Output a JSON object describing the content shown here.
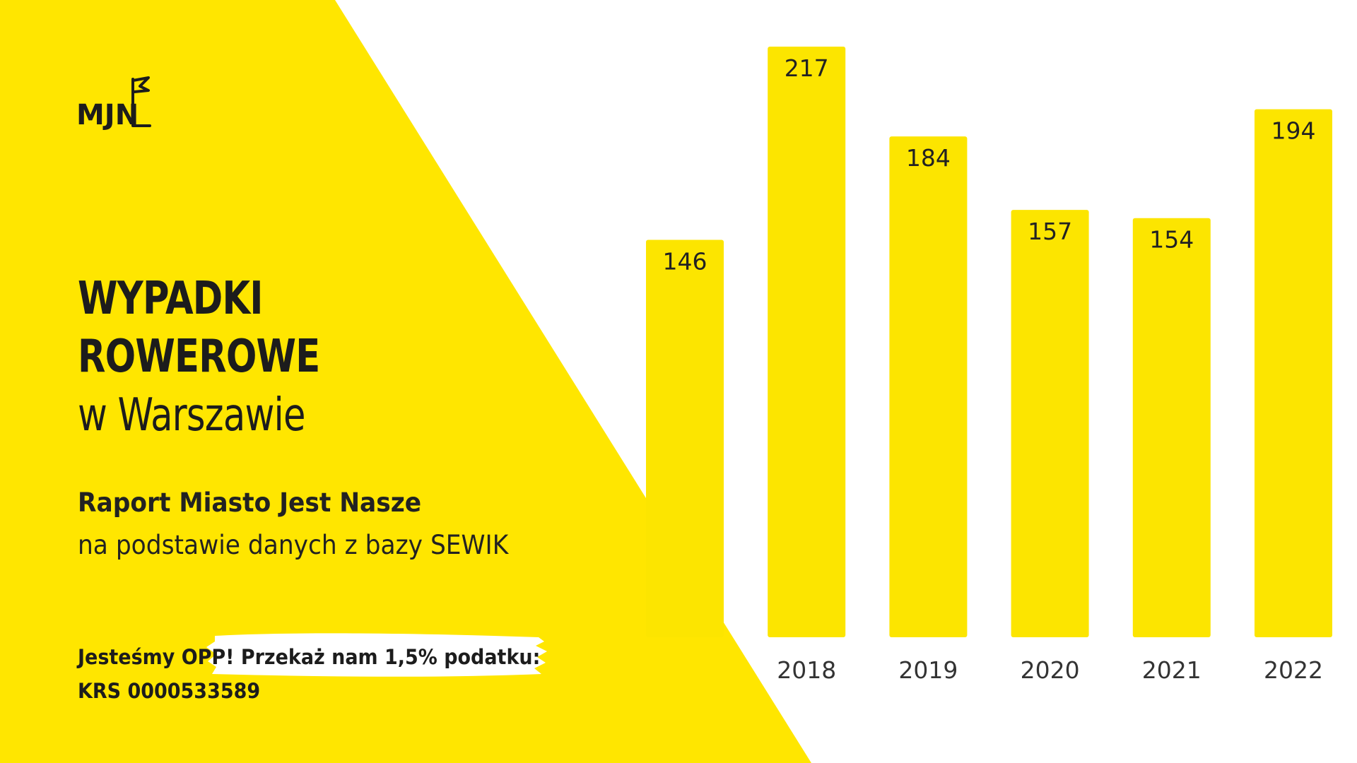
{
  "colors": {
    "accent": "#FFE600",
    "bar": "#FCE500",
    "text": "#1C1C1C",
    "background": "#FFFFFF"
  },
  "logo": {
    "text": "MJN",
    "icon": "flag-icon"
  },
  "headline": {
    "line1": "WYPADKI",
    "line2": "ROWEROWE",
    "line3": "w Warszawie"
  },
  "subtitle": {
    "report": "Raport Miasto Jest Nasze",
    "source": "na podstawie danych z bazy SEWIK"
  },
  "footer": {
    "opp": "Jesteśmy OPP!",
    "donate": "Przekaż nam 1,5% podatku:",
    "krs": "KRS 0000533589"
  },
  "chart_data": {
    "type": "bar",
    "categories": [
      "",
      "2018",
      "2019",
      "2020",
      "2021",
      "2022"
    ],
    "values": [
      146,
      217,
      184,
      157,
      154,
      194
    ],
    "title": "",
    "xlabel": "",
    "ylabel": "",
    "ylim": [
      0,
      217
    ],
    "grid": false,
    "legend": "none"
  }
}
